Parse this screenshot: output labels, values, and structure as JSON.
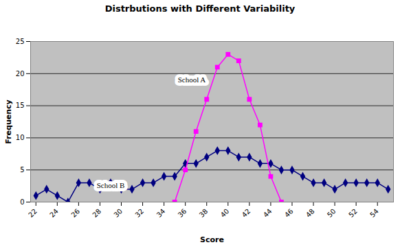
{
  "chart_data": {
    "type": "line",
    "title": "Distrbutions with Different Variability",
    "x_label": "Score",
    "y_label": "Frequency",
    "xlim": [
      21.5,
      55.5
    ],
    "xticks": [
      22,
      24,
      26,
      28,
      30,
      32,
      34,
      36,
      38,
      40,
      42,
      44,
      46,
      48,
      50,
      52,
      54
    ],
    "ylim": [
      0,
      25
    ],
    "yticks": [
      0,
      5,
      10,
      15,
      20,
      25
    ],
    "grid": true,
    "series": [
      {
        "name": "School B",
        "color": "#000080",
        "marker": "diamond",
        "x": [
          22,
          23,
          24,
          25,
          26,
          27,
          28,
          29,
          30,
          31,
          32,
          33,
          34,
          35,
          36,
          37,
          38,
          39,
          40,
          41,
          42,
          43,
          44,
          45,
          46,
          47,
          48,
          49,
          50,
          51,
          52,
          53,
          54,
          55
        ],
        "values": [
          1,
          2,
          1,
          0,
          3,
          3,
          2,
          3,
          2,
          2,
          3,
          3,
          4,
          4,
          6,
          6,
          7,
          8,
          8,
          7,
          7,
          6,
          6,
          5,
          5,
          4,
          3,
          3,
          2,
          3,
          3,
          3,
          3,
          2
        ]
      },
      {
        "name": "School A",
        "color": "#ff00ff",
        "marker": "square",
        "x": [
          35,
          36,
          37,
          38,
          39,
          40,
          41,
          42,
          43,
          44,
          45
        ],
        "values": [
          0,
          5,
          11,
          16,
          21,
          23,
          22,
          16,
          12,
          4,
          0
        ]
      }
    ],
    "annotations": [
      {
        "text": "School A",
        "x": 36.6,
        "y": 19
      },
      {
        "text": "School B",
        "x": 29,
        "y": 2.6
      }
    ]
  }
}
